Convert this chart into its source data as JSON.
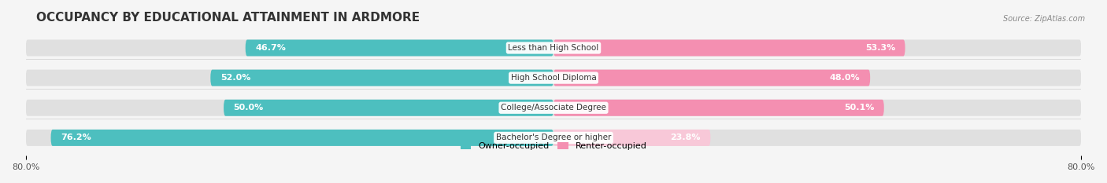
{
  "title": "OCCUPANCY BY EDUCATIONAL ATTAINMENT IN ARDMORE",
  "source": "Source: ZipAtlas.com",
  "categories": [
    "Less than High School",
    "High School Diploma",
    "College/Associate Degree",
    "Bachelor's Degree or higher"
  ],
  "owner_values": [
    46.7,
    52.0,
    50.0,
    76.2
  ],
  "renter_values": [
    53.3,
    48.0,
    50.1,
    23.8
  ],
  "owner_color": "#4dbfbf",
  "renter_color": "#f48fb1",
  "owner_color_light": "#4dbfbf",
  "renter_color_light": "#f8c8d8",
  "xlim_left": -80.0,
  "xlim_right": 80.0,
  "background_color": "#f5f5f5",
  "bar_bg_color": "#e8e8e8",
  "title_fontsize": 11,
  "label_fontsize": 8,
  "tick_fontsize": 8,
  "legend_fontsize": 8
}
